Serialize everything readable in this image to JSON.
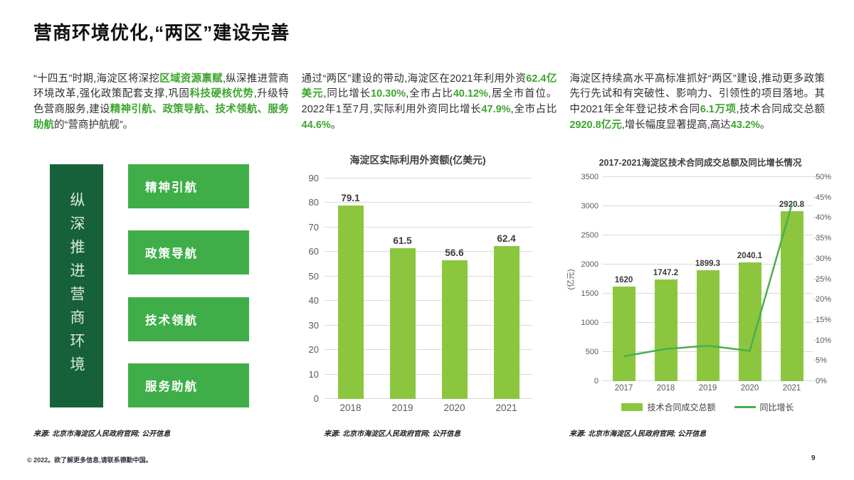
{
  "title": "营商环境优化,“两区”建设完善",
  "colors": {
    "accent_green": "#3EA52F",
    "dark_green": "#17613A",
    "box_green": "#3FAE49",
    "bar_green": "#8CC63F",
    "line_green": "#4BAE4C"
  },
  "paragraphs": [
    {
      "segments": [
        {
          "t": "“十四五”时期,海淀区将深挖",
          "hl": false
        },
        {
          "t": "区域资源禀赋",
          "hl": true
        },
        {
          "t": ",纵深推进营商环境改革,强化政策配套支撑,巩固",
          "hl": false
        },
        {
          "t": "科技硬核优势",
          "hl": true
        },
        {
          "t": ",升级特色营商服务,建设",
          "hl": false
        },
        {
          "t": "精神引航、政策导航、技术领航、服务助航",
          "hl": true
        },
        {
          "t": "的“营商护航舰”。",
          "hl": false
        }
      ]
    },
    {
      "segments": [
        {
          "t": "通过“两区”建设的带动,海淀区在2021年利用外资",
          "hl": false
        },
        {
          "t": "62.4亿美元",
          "hl": true
        },
        {
          "t": ",同比增长",
          "hl": false
        },
        {
          "t": "10.30%",
          "hl": true
        },
        {
          "t": ",全市占比",
          "hl": false
        },
        {
          "t": "40.12%",
          "hl": true
        },
        {
          "t": ",居全市首位。2022年1至7月,实际利用外资同比增长",
          "hl": false
        },
        {
          "t": "47.9%",
          "hl": true
        },
        {
          "t": ",全市占比",
          "hl": false
        },
        {
          "t": "44.6%",
          "hl": true
        },
        {
          "t": "。",
          "hl": false
        }
      ]
    },
    {
      "segments": [
        {
          "t": "海淀区持续高水平高标准抓好“两区”建设,推动更多政策先行先试和有突破性、影响力、引领性的项目落地。其中2021年全年登记技术合同",
          "hl": false
        },
        {
          "t": "6.1万项",
          "hl": true
        },
        {
          "t": ",技术合同成交总额",
          "hl": false
        },
        {
          "t": "2920.8亿元",
          "hl": true
        },
        {
          "t": ",增长幅度显著提高,高达",
          "hl": false
        },
        {
          "t": "43.2%",
          "hl": true
        },
        {
          "t": "。",
          "hl": false
        }
      ]
    }
  ],
  "diagram": {
    "vertical_label": "纵深推进营商环境",
    "boxes": [
      "精神引航",
      "政策导航",
      "技术领航",
      "服务助航"
    ],
    "source": "来源: 北京市海淀区人民政府官网; 公开信息"
  },
  "chart_data": [
    {
      "type": "bar",
      "title": "海淀区实际利用外资额(亿美元)",
      "categories": [
        "2018",
        "2019",
        "2020",
        "2021"
      ],
      "values": [
        79.1,
        61.5,
        56.6,
        62.4
      ],
      "labels": [
        "79.1",
        "61.5",
        "56.6",
        "62.4"
      ],
      "ylim": [
        0,
        90
      ],
      "ystep": 10,
      "bar_color": "#8CC63F",
      "grid": true,
      "source": "来源: 北京市海淀区人民政府官网; 公开信息"
    },
    {
      "type": "combo",
      "title": "2017-2021海淀区技术合同成交总额及同比增长情况",
      "categories": [
        "2017",
        "2018",
        "2019",
        "2020",
        "2021"
      ],
      "series": [
        {
          "name": "技术合同成交总额",
          "type": "bar",
          "values": [
            1620,
            1747.2,
            1899.3,
            2040.1,
            2920.8
          ],
          "labels": [
            "1620",
            "1747.2",
            "1899.3",
            "2040.1",
            "2920.8"
          ],
          "color": "#8CC63F"
        },
        {
          "name": "同比增长",
          "type": "line",
          "values": [
            6.1,
            7.9,
            8.7,
            7.4,
            43.2
          ],
          "color": "#4BAE4C"
        }
      ],
      "ylabel_left": "(亿元)",
      "ylim_left": [
        0,
        3500
      ],
      "ystep_left": 500,
      "ylim_right": [
        0,
        50
      ],
      "ystep_right": 5,
      "right_unit": "%",
      "grid": true,
      "legend_position": "bottom",
      "source": "来源: 北京市海淀区人民政府官网; 公开信息"
    }
  ],
  "footer": {
    "copyright": "© 2022。欲了解更多信息,请联系德勤中国。",
    "page_number": "9"
  }
}
